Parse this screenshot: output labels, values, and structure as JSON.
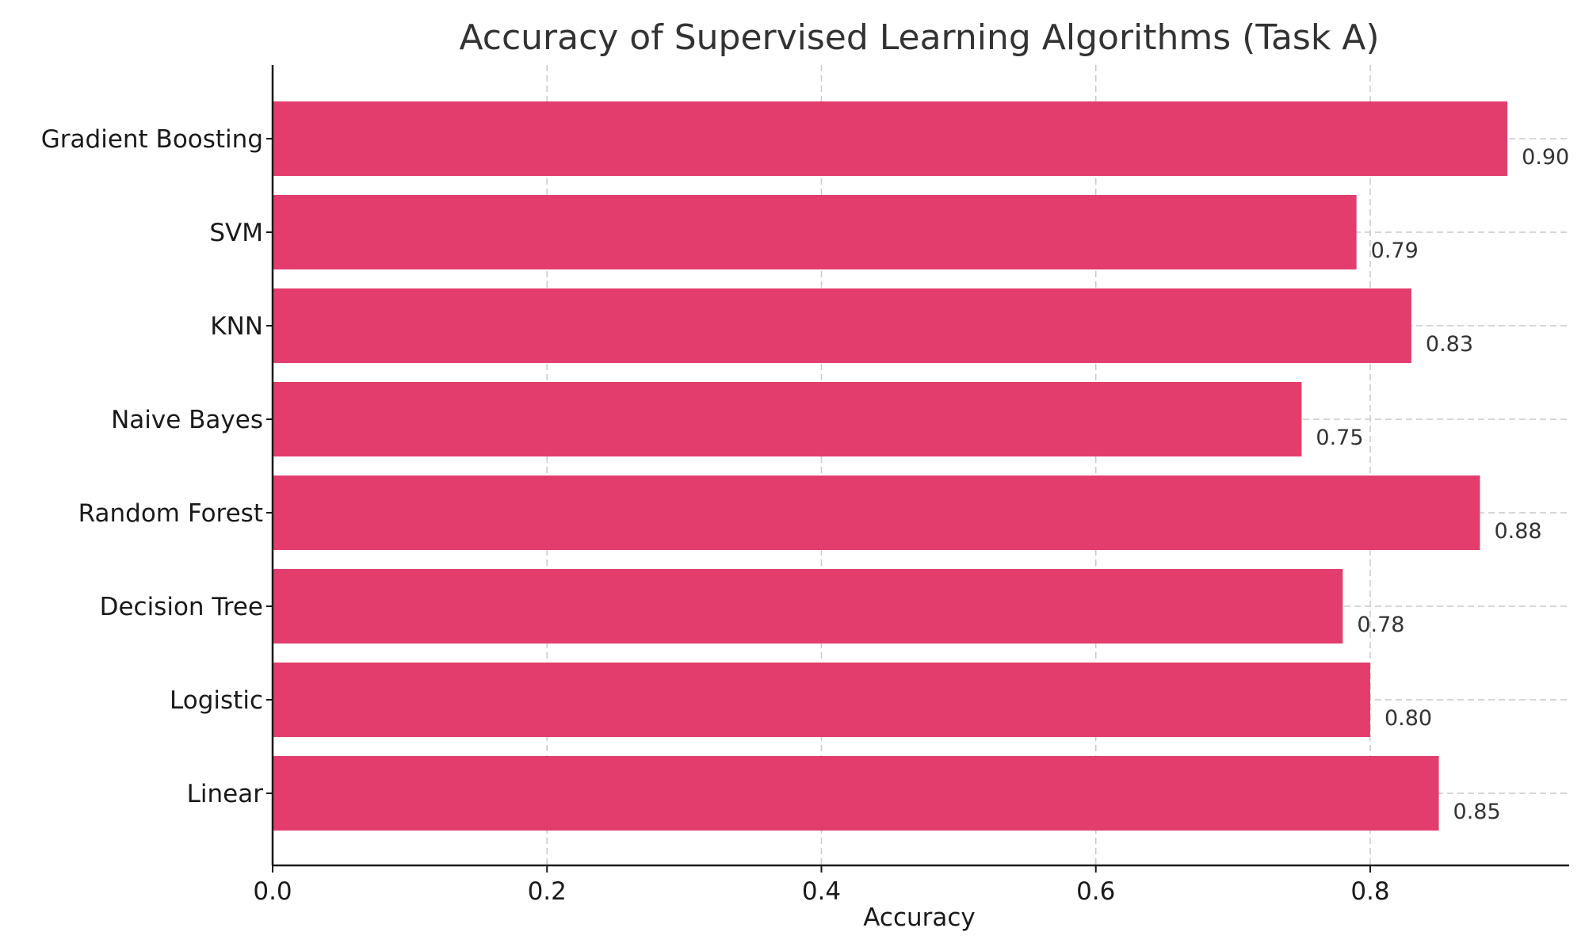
{
  "chart_data": {
    "type": "bar",
    "orientation": "horizontal",
    "title": "Accuracy of Supervised Learning Algorithms (Task A)",
    "xlabel": "Accuracy",
    "ylabel": "",
    "categories": [
      "Linear",
      "Logistic",
      "Decision Tree",
      "Random Forest",
      "Naive Bayes",
      "KNN",
      "SVM",
      "Gradient Boosting"
    ],
    "values": [
      0.85,
      0.8,
      0.78,
      0.88,
      0.75,
      0.83,
      0.79,
      0.9
    ],
    "value_labels": [
      "0.85",
      "0.80",
      "0.78",
      "0.88",
      "0.75",
      "0.83",
      "0.79",
      "0.90"
    ],
    "xlim": [
      0,
      0.945
    ],
    "xticks": [
      0.0,
      0.2,
      0.4,
      0.6,
      0.8
    ],
    "xtick_labels": [
      "0.0",
      "0.2",
      "0.4",
      "0.6",
      "0.8"
    ],
    "grid": true,
    "bar_color": "#e33d6d"
  }
}
